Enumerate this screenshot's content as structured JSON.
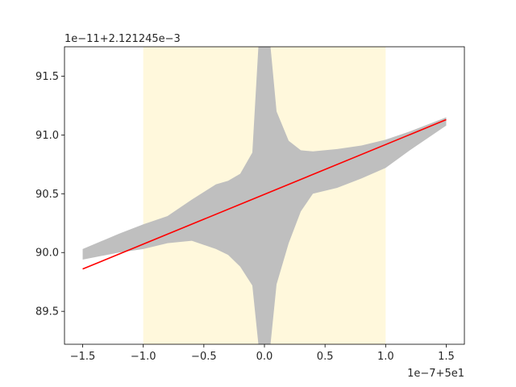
{
  "chart_data": {
    "type": "line",
    "title": "",
    "xlabel": "",
    "ylabel": "",
    "x_offset_label": "1e−7+5e1",
    "y_offset_label": "1e−11+2.121245e−3",
    "xlim": [
      -1.65,
      1.65
    ],
    "ylim": [
      89.22,
      91.75
    ],
    "x_ticks": [
      -1.5,
      -1.0,
      -0.5,
      0.0,
      0.5,
      1.0,
      1.5
    ],
    "x_tick_labels": [
      "−1.5",
      "−1.0",
      "−0.5",
      "0.0",
      "0.5",
      "1.0",
      "1.5"
    ],
    "y_ticks": [
      89.5,
      90.0,
      90.5,
      91.0,
      91.5
    ],
    "y_tick_labels": [
      "89.5",
      "90.0",
      "90.5",
      "91.0",
      "91.5"
    ],
    "shaded_region": {
      "x": [
        -1.0,
        1.0
      ],
      "color": "#fff8dc"
    },
    "fit_line": {
      "color": "#ff0000",
      "x": [
        -1.5,
        1.5
      ],
      "y": [
        89.86,
        91.13
      ]
    },
    "noise_band": {
      "color": "#bfbfbf",
      "x": [
        -1.5,
        -1.2,
        -1.0,
        -0.8,
        -0.6,
        -0.4,
        -0.3,
        -0.2,
        -0.1,
        -0.05,
        0.0,
        0.05,
        0.1,
        0.2,
        0.3,
        0.4,
        0.6,
        0.8,
        1.0,
        1.2,
        1.5
      ],
      "low": [
        89.94,
        90.0,
        90.03,
        90.08,
        90.1,
        90.03,
        89.98,
        89.88,
        89.72,
        89.22,
        89.22,
        89.22,
        89.73,
        90.08,
        90.35,
        90.5,
        90.55,
        90.63,
        90.72,
        90.87,
        91.08
      ],
      "high": [
        90.03,
        90.16,
        90.24,
        90.31,
        90.45,
        90.58,
        90.61,
        90.67,
        90.85,
        91.75,
        91.75,
        91.75,
        91.2,
        90.95,
        90.87,
        90.86,
        90.88,
        90.91,
        90.96,
        91.03,
        91.15
      ]
    }
  }
}
